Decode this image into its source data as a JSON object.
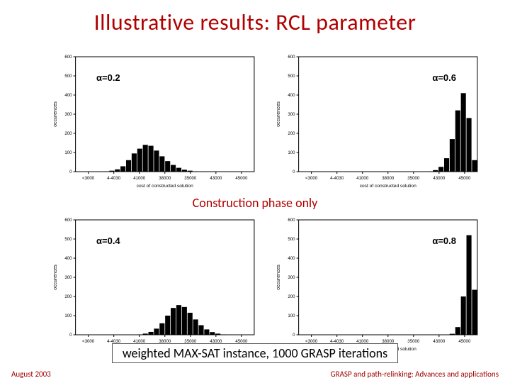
{
  "title": "Illustrative results: RCL parameter",
  "divider": "Construction phase only",
  "note": "weighted MAX-SAT instance, 1000 GRASP iterations",
  "footer_left": "August 2003",
  "footer_right": "GRASP and path-relinking: Advances and applications",
  "colors": {
    "title": "#b00000",
    "divider": "#b00000",
    "note": "#000000",
    "footer": "#a00000",
    "axis": "#000000",
    "tick": "#000000",
    "bar": "#000000",
    "plot_bg": "#ffffff"
  },
  "axis_style": {
    "font_family": "Arial",
    "tick_fontsize_px": 6,
    "label_fontsize_px": 7,
    "line_width": 1
  },
  "common": {
    "ylabel": "occurences",
    "xlabel": "cost of constructed solution",
    "xticks_labels": [
      "<3000",
      "4-4030",
      "41000",
      "38000",
      "35000",
      "43000",
      "45000"
    ],
    "xlim": [
      0,
      7
    ],
    "ylim": [
      0,
      600
    ],
    "yticks": [
      0,
      100,
      200,
      300,
      400,
      500,
      600
    ],
    "bar_width_ratio": 0.9,
    "n_bins": 32
  },
  "charts": [
    {
      "id": "c02",
      "label": "α=0.2",
      "label_side": "left",
      "counts": [
        0,
        0,
        0,
        0,
        0,
        2,
        5,
        12,
        28,
        60,
        95,
        120,
        140,
        135,
        110,
        80,
        55,
        35,
        20,
        10,
        5,
        2,
        0,
        0,
        0,
        0,
        0,
        0,
        0,
        0,
        0,
        0
      ]
    },
    {
      "id": "c06",
      "label": "α=0.6",
      "label_side": "right",
      "counts": [
        0,
        0,
        0,
        0,
        0,
        0,
        0,
        0,
        0,
        0,
        0,
        0,
        0,
        0,
        0,
        0,
        0,
        0,
        0,
        0,
        0,
        0,
        0,
        2,
        8,
        25,
        70,
        170,
        320,
        410,
        280,
        60
      ]
    },
    {
      "id": "c04",
      "label": "α=0.4",
      "label_side": "left",
      "counts": [
        0,
        0,
        0,
        0,
        0,
        0,
        0,
        0,
        0,
        0,
        0,
        2,
        6,
        15,
        32,
        60,
        100,
        140,
        155,
        145,
        115,
        80,
        50,
        28,
        14,
        6,
        2,
        0,
        0,
        0,
        0,
        0
      ]
    },
    {
      "id": "c08",
      "label": "α=0.8",
      "label_side": "right",
      "counts": [
        0,
        0,
        0,
        0,
        0,
        0,
        0,
        0,
        0,
        0,
        0,
        0,
        0,
        0,
        0,
        0,
        0,
        0,
        0,
        0,
        0,
        0,
        0,
        0,
        0,
        0,
        0,
        5,
        40,
        200,
        520,
        235
      ]
    }
  ]
}
